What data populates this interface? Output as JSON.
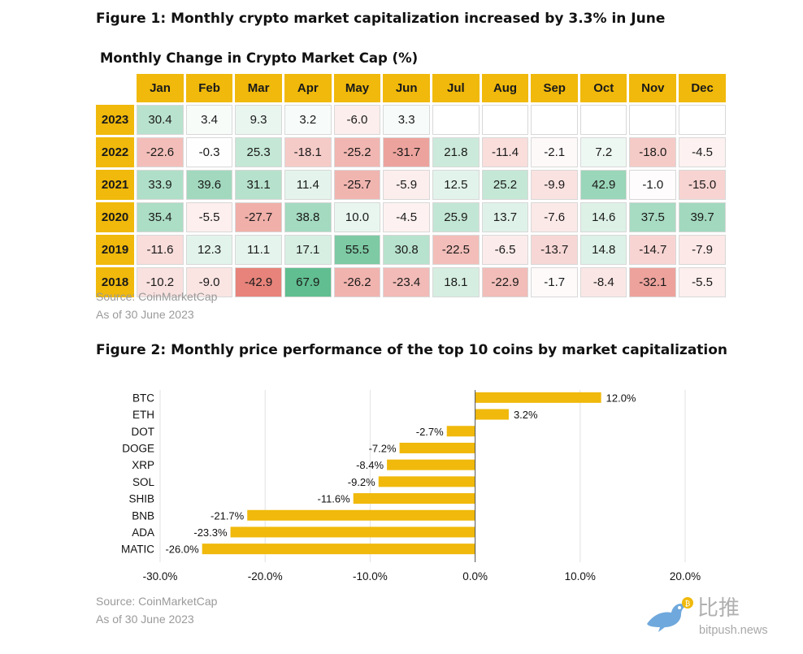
{
  "figure1": {
    "title": "Figure 1: Monthly crypto market capitalization increased by 3.3% in June",
    "table_title": "Monthly Change in Crypto Market Cap (%)",
    "source": "Source: CoinMarketCap",
    "as_of": "As of 30 June 2023"
  },
  "figure2": {
    "title": "Figure 2: Monthly price performance of the top 10 coins by market capitalization",
    "source": "Source: CoinMarketCap",
    "as_of": "As of 30 June 2023"
  },
  "watermark": {
    "text": "比推",
    "sub": "bitpush.news"
  },
  "colors": {
    "accent": "#f0b90b",
    "positive_strong": "#57bb8a",
    "negative_strong": "#e67c73",
    "neutral": "#ffffff"
  },
  "chart_data": [
    {
      "type": "heatmap",
      "title": "Monthly Change in Crypto Market Cap (%)",
      "columns": [
        "Jan",
        "Feb",
        "Mar",
        "Apr",
        "May",
        "Jun",
        "Jul",
        "Aug",
        "Sep",
        "Oct",
        "Nov",
        "Dec"
      ],
      "rows": [
        {
          "label": "2023",
          "values": [
            "30.4",
            "3.4",
            "9.3",
            "3.2",
            "-6.0",
            "3.3",
            "",
            "",
            "",
            "",
            "",
            ""
          ]
        },
        {
          "label": "2022",
          "values": [
            "-22.6",
            "-0.3",
            "25.3",
            "-18.1",
            "-25.2",
            "-31.7",
            "21.8",
            "-11.4",
            "-2.1",
            "7.2",
            "-18.0",
            "-4.5"
          ]
        },
        {
          "label": "2021",
          "values": [
            "33.9",
            "39.6",
            "31.1",
            "11.4",
            "-25.7",
            "-5.9",
            "12.5",
            "25.2",
            "-9.9",
            "42.9",
            "-1.0",
            "-15.0"
          ]
        },
        {
          "label": "2020",
          "values": [
            "35.4",
            "-5.5",
            "-27.7",
            "38.8",
            "10.0",
            "-4.5",
            "25.9",
            "13.7",
            "-7.6",
            "14.6",
            "37.5",
            "39.7"
          ]
        },
        {
          "label": "2019",
          "values": [
            "-11.6",
            "12.3",
            "11.1",
            "17.1",
            "55.5",
            "30.8",
            "-22.5",
            "-6.5",
            "-13.7",
            "14.8",
            "-14.7",
            "-7.9"
          ]
        },
        {
          "label": "2018",
          "values": [
            "-10.2",
            "-9.0",
            "-42.9",
            "67.9",
            "-26.2",
            "-23.4",
            "18.1",
            "-22.9",
            "-1.7",
            "-8.4",
            "-32.1",
            "-5.5"
          ]
        }
      ]
    },
    {
      "type": "bar",
      "orientation": "horizontal",
      "categories": [
        "BTC",
        "ETH",
        "DOT",
        "DOGE",
        "XRP",
        "SOL",
        "SHIB",
        "BNB",
        "ADA",
        "MATIC"
      ],
      "values": [
        12.0,
        3.2,
        -2.7,
        -7.2,
        -8.4,
        -9.2,
        -11.6,
        -21.7,
        -23.3,
        -26.0
      ],
      "value_labels": [
        "12.0%",
        "3.2%",
        "-2.7%",
        "-7.2%",
        "-8.4%",
        "-9.2%",
        "-11.6%",
        "-21.7%",
        "-23.3%",
        "-26.0%"
      ],
      "xlim": [
        -30,
        20
      ],
      "xticks": [
        -30,
        -20,
        -10,
        0,
        10,
        20
      ],
      "xtick_labels": [
        "-30.0%",
        "-20.0%",
        "-10.0%",
        "0.0%",
        "10.0%",
        "20.0%"
      ],
      "bar_color": "#f0b90b",
      "grid": true
    }
  ]
}
